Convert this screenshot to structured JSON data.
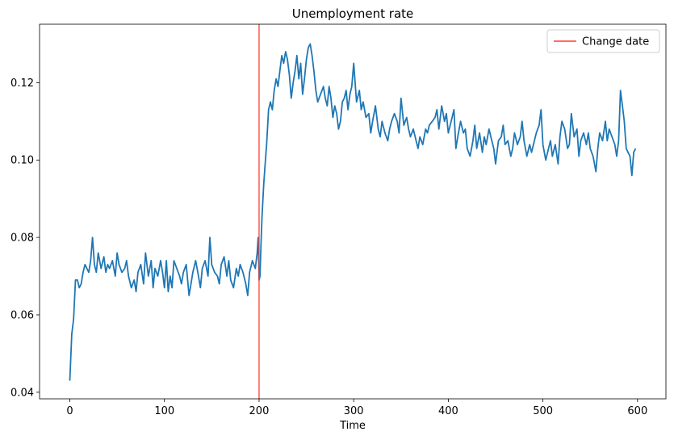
{
  "chart_data": {
    "type": "line",
    "title": "Unemployment rate",
    "xlabel": "Time",
    "ylabel": "",
    "xlim": [
      -32,
      630
    ],
    "ylim": [
      0.0383,
      0.1351
    ],
    "xticks": [
      0,
      100,
      200,
      300,
      400,
      500,
      600
    ],
    "yticks": [
      0.04,
      0.06,
      0.08,
      0.1,
      0.12
    ],
    "ytick_labels": [
      "0.04",
      "0.06",
      "0.08",
      "0.10",
      "0.12"
    ],
    "grid": false,
    "legend_position": "top-right",
    "colors": {
      "series": "#1f77b4",
      "change_line": "#ff3b30"
    },
    "vertical_line": {
      "x": 200,
      "label": "Change date"
    },
    "series": [
      {
        "name": "",
        "x": [
          0,
          2,
          4,
          6,
          8,
          10,
          12,
          14,
          16,
          18,
          20,
          22,
          24,
          26,
          28,
          30,
          33,
          36,
          38,
          40,
          42,
          45,
          48,
          50,
          52,
          55,
          58,
          60,
          62,
          65,
          68,
          70,
          72,
          75,
          78,
          80,
          83,
          86,
          88,
          90,
          93,
          96,
          98,
          100,
          102,
          104,
          106,
          108,
          110,
          113,
          116,
          118,
          120,
          123,
          126,
          128,
          130,
          133,
          136,
          138,
          140,
          143,
          146,
          148,
          150,
          153,
          156,
          158,
          160,
          163,
          166,
          168,
          170,
          173,
          176,
          178,
          180,
          183,
          186,
          188,
          190,
          193,
          196,
          198,
          199,
          200,
          201,
          202,
          203,
          205,
          207,
          208,
          210,
          212,
          214,
          216,
          218,
          220,
          222,
          224,
          226,
          228,
          230,
          232,
          234,
          236,
          238,
          240,
          242,
          244,
          246,
          248,
          250,
          252,
          254,
          256,
          258,
          260,
          262,
          265,
          268,
          270,
          272,
          274,
          276,
          278,
          280,
          282,
          284,
          286,
          288,
          290,
          292,
          294,
          296,
          298,
          300,
          303,
          306,
          308,
          310,
          313,
          316,
          318,
          320,
          323,
          326,
          328,
          330,
          333,
          336,
          338,
          340,
          343,
          346,
          348,
          350,
          353,
          356,
          358,
          360,
          363,
          366,
          368,
          370,
          373,
          376,
          378,
          380,
          383,
          386,
          388,
          390,
          393,
          396,
          398,
          400,
          403,
          406,
          408,
          410,
          413,
          416,
          418,
          420,
          423,
          426,
          428,
          430,
          433,
          436,
          438,
          440,
          443,
          446,
          448,
          450,
          453,
          456,
          458,
          460,
          463,
          466,
          468,
          470,
          473,
          476,
          478,
          480,
          483,
          486,
          488,
          490,
          493,
          496,
          498,
          500,
          503,
          506,
          508,
          510,
          513,
          516,
          518,
          520,
          523,
          526,
          528,
          530,
          533,
          536,
          538,
          540,
          543,
          546,
          548,
          550,
          553,
          556,
          558,
          560,
          563,
          566,
          568,
          570,
          573,
          576,
          578,
          580,
          582,
          584,
          586,
          588,
          590,
          592,
          594,
          596,
          598
        ],
        "values": [
          0.043,
          0.055,
          0.059,
          0.069,
          0.069,
          0.067,
          0.068,
          0.071,
          0.073,
          0.072,
          0.071,
          0.074,
          0.08,
          0.073,
          0.071,
          0.076,
          0.072,
          0.075,
          0.071,
          0.073,
          0.072,
          0.074,
          0.07,
          0.076,
          0.073,
          0.071,
          0.072,
          0.074,
          0.07,
          0.067,
          0.069,
          0.066,
          0.071,
          0.073,
          0.068,
          0.076,
          0.07,
          0.074,
          0.067,
          0.072,
          0.07,
          0.074,
          0.071,
          0.067,
          0.074,
          0.066,
          0.07,
          0.067,
          0.074,
          0.072,
          0.07,
          0.068,
          0.071,
          0.073,
          0.065,
          0.068,
          0.071,
          0.074,
          0.07,
          0.067,
          0.072,
          0.074,
          0.07,
          0.08,
          0.073,
          0.071,
          0.07,
          0.068,
          0.073,
          0.075,
          0.07,
          0.074,
          0.069,
          0.067,
          0.072,
          0.07,
          0.073,
          0.071,
          0.068,
          0.065,
          0.071,
          0.074,
          0.072,
          0.076,
          0.08,
          0.069,
          0.07,
          0.078,
          0.085,
          0.094,
          0.101,
          0.104,
          0.113,
          0.115,
          0.113,
          0.118,
          0.121,
          0.119,
          0.123,
          0.127,
          0.125,
          0.128,
          0.126,
          0.122,
          0.116,
          0.12,
          0.123,
          0.127,
          0.121,
          0.125,
          0.117,
          0.121,
          0.126,
          0.129,
          0.13,
          0.127,
          0.123,
          0.118,
          0.115,
          0.117,
          0.119,
          0.116,
          0.114,
          0.119,
          0.116,
          0.111,
          0.114,
          0.112,
          0.108,
          0.11,
          0.115,
          0.116,
          0.118,
          0.113,
          0.117,
          0.119,
          0.125,
          0.115,
          0.118,
          0.113,
          0.115,
          0.111,
          0.112,
          0.107,
          0.11,
          0.114,
          0.108,
          0.106,
          0.11,
          0.107,
          0.105,
          0.108,
          0.11,
          0.112,
          0.11,
          0.107,
          0.116,
          0.109,
          0.111,
          0.108,
          0.106,
          0.108,
          0.105,
          0.103,
          0.106,
          0.104,
          0.108,
          0.107,
          0.109,
          0.11,
          0.111,
          0.113,
          0.108,
          0.114,
          0.11,
          0.112,
          0.107,
          0.11,
          0.113,
          0.103,
          0.106,
          0.11,
          0.107,
          0.108,
          0.103,
          0.101,
          0.105,
          0.109,
          0.103,
          0.107,
          0.102,
          0.106,
          0.104,
          0.108,
          0.105,
          0.103,
          0.099,
          0.105,
          0.106,
          0.109,
          0.104,
          0.105,
          0.101,
          0.103,
          0.107,
          0.104,
          0.106,
          0.11,
          0.105,
          0.101,
          0.104,
          0.102,
          0.104,
          0.107,
          0.109,
          0.113,
          0.104,
          0.1,
          0.103,
          0.105,
          0.101,
          0.104,
          0.099,
          0.106,
          0.11,
          0.108,
          0.103,
          0.104,
          0.112,
          0.106,
          0.108,
          0.101,
          0.105,
          0.107,
          0.104,
          0.107,
          0.103,
          0.101,
          0.097,
          0.103,
          0.107,
          0.105,
          0.11,
          0.105,
          0.108,
          0.106,
          0.104,
          0.101,
          0.105,
          0.118,
          0.114,
          0.11,
          0.103,
          0.102,
          0.101,
          0.096,
          0.102,
          0.103
        ]
      }
    ]
  }
}
